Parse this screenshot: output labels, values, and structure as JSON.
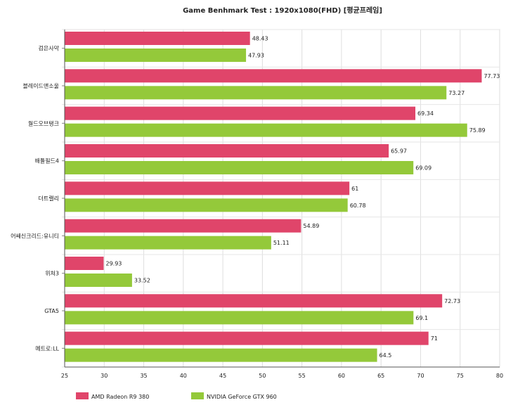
{
  "chart_data": {
    "type": "bar",
    "orientation": "horizontal",
    "title": "Game Benhmark Test : 1920x1080(FHD) [평균프레임]",
    "categories": [
      "검은사막",
      "블레이드앤소울",
      "월드오브탱크",
      "배틀필드4",
      "더트랠리",
      "어쌔신크리드:유니티",
      "위쳐3",
      "GTA5",
      "메트로:LL"
    ],
    "series": [
      {
        "name": "AMD Radeon R9 380",
        "color": "#e0456a",
        "values": [
          48.43,
          77.73,
          69.34,
          65.97,
          61,
          54.89,
          29.93,
          72.73,
          71
        ]
      },
      {
        "name": "NVIDIA GeForce GTX 960",
        "color": "#94c93a",
        "values": [
          47.93,
          73.27,
          75.89,
          69.09,
          60.78,
          51.11,
          33.52,
          69.1,
          64.5
        ]
      }
    ],
    "xlim": [
      25,
      80
    ],
    "xticks": [
      25,
      30,
      35,
      40,
      45,
      50,
      55,
      60,
      65,
      70,
      75,
      80
    ],
    "grid": true,
    "legend_position": "bottom-left"
  }
}
